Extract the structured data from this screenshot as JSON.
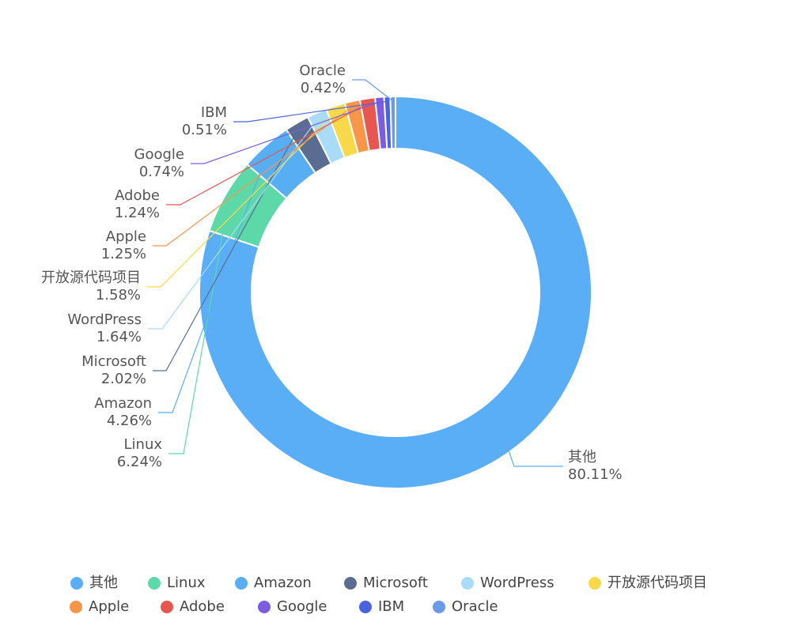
{
  "chart_data": {
    "type": "donut",
    "categories": [
      "其他",
      "Linux",
      "Amazon",
      "Microsoft",
      "WordPress",
      "开放源代码项目",
      "Apple",
      "Adobe",
      "Google",
      "IBM",
      "Oracle"
    ],
    "values": [
      80.11,
      6.24,
      4.26,
      2.02,
      1.64,
      1.58,
      1.25,
      1.24,
      0.74,
      0.51,
      0.42
    ],
    "value_labels": [
      "80.11%",
      "6.24%",
      "4.26%",
      "2.02%",
      "1.64%",
      "1.58%",
      "1.25%",
      "1.24%",
      "0.74%",
      "0.51%",
      "0.42%"
    ],
    "colors": [
      "#5aaef5",
      "#5dd8a8",
      "#58aef3",
      "#5a6d91",
      "#a9dcf8",
      "#f9d94a",
      "#f8964a",
      "#e8574f",
      "#7b5de0",
      "#4a63e0",
      "#6a9ae8"
    ],
    "legend": "bottom"
  }
}
